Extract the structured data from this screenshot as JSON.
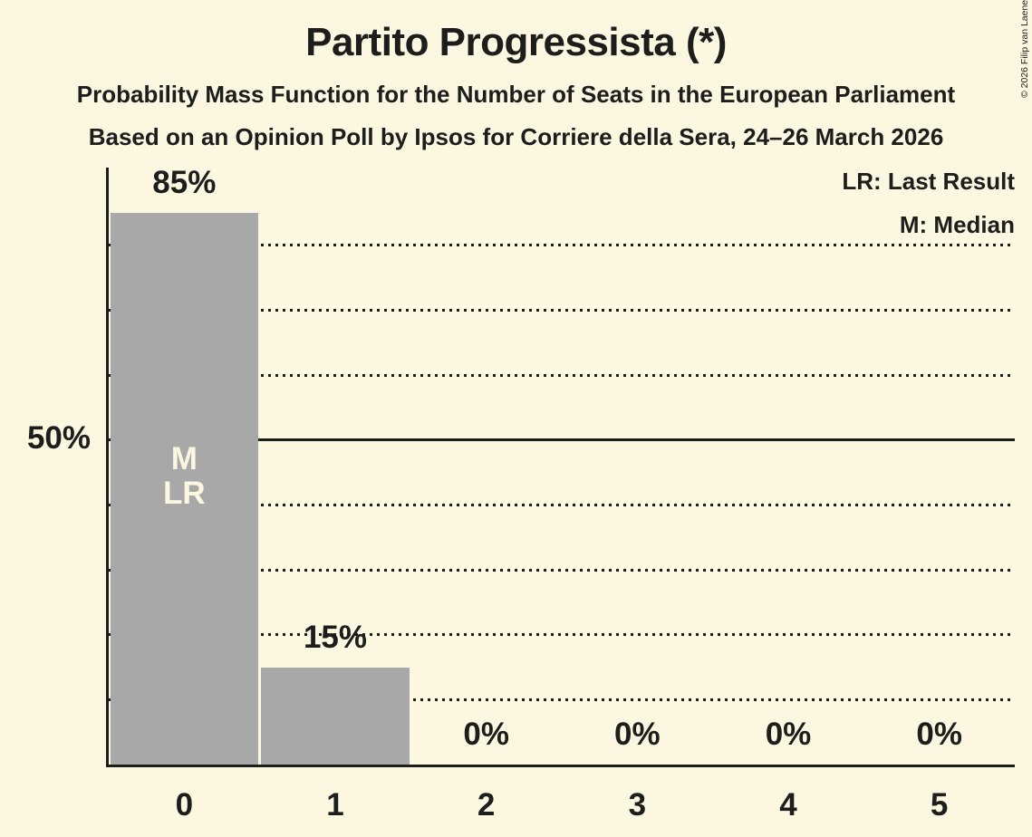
{
  "header": {
    "title": "Partito Progressista (*)",
    "subtitle1": "Probability Mass Function for the Number of Seats in the European Parliament",
    "subtitle2": "Based on an Opinion Poll by Ipsos for Corriere della Sera, 24–26 March 2026"
  },
  "copyright": "© 2026 Filip van Laenen",
  "legend": {
    "lr": "LR: Last Result",
    "m": "M: Median"
  },
  "colors": {
    "background": "#FBF7E1",
    "text": "#1D1D1B",
    "bar": "#A8A8A8",
    "bar_label": "#FBF7E1"
  },
  "chart_data": {
    "type": "bar",
    "title": "Partito Progressista (*)",
    "xlabel": "",
    "ylabel": "",
    "categories": [
      "0",
      "1",
      "2",
      "3",
      "4",
      "5"
    ],
    "values": [
      85,
      15,
      0,
      0,
      0,
      0
    ],
    "value_labels": [
      "85%",
      "15%",
      "0%",
      "0%",
      "0%",
      "0%"
    ],
    "ylim": [
      0,
      92
    ],
    "grid": "horizontal",
    "gridlines": {
      "dotted_at": [
        10,
        20,
        30,
        40,
        60,
        70,
        80
      ],
      "solid_at": [
        50
      ]
    },
    "y_axis_label": {
      "text": "50%",
      "at": 50
    },
    "marker_labels": [
      "M",
      "LR"
    ],
    "median_category": "0",
    "last_result_category": "0",
    "legend_position": "top-right"
  }
}
